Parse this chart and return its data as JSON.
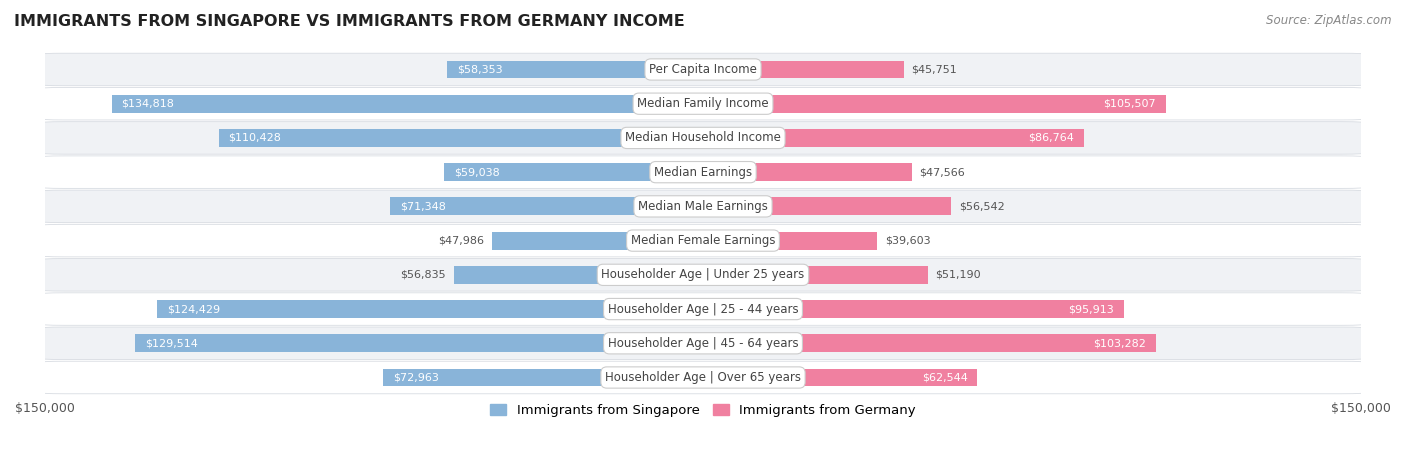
{
  "title": "IMMIGRANTS FROM SINGAPORE VS IMMIGRANTS FROM GERMANY INCOME",
  "source": "Source: ZipAtlas.com",
  "categories": [
    "Per Capita Income",
    "Median Family Income",
    "Median Household Income",
    "Median Earnings",
    "Median Male Earnings",
    "Median Female Earnings",
    "Householder Age | Under 25 years",
    "Householder Age | 25 - 44 years",
    "Householder Age | 45 - 64 years",
    "Householder Age | Over 65 years"
  ],
  "singapore_values": [
    58353,
    134818,
    110428,
    59038,
    71348,
    47986,
    56835,
    124429,
    129514,
    72963
  ],
  "germany_values": [
    45751,
    105507,
    86764,
    47566,
    56542,
    39603,
    51190,
    95913,
    103282,
    62544
  ],
  "max_val": 150000,
  "singapore_color": "#89b4d9",
  "germany_color": "#f080a0",
  "singapore_label": "Immigrants from Singapore",
  "germany_label": "Immigrants from Germany",
  "bar_height": 0.52,
  "background_color": "#ffffff",
  "row_bg_colors": [
    "#f0f2f5",
    "#ffffff",
    "#f0f2f5",
    "#ffffff",
    "#f0f2f5",
    "#ffffff",
    "#f0f2f5",
    "#ffffff",
    "#f0f2f5",
    "#ffffff"
  ],
  "row_border_color": "#d8dce2",
  "label_box_color": "#ffffff",
  "label_box_edge": "#cccccc",
  "value_label_fontsize": 8.0,
  "category_label_fontsize": 8.5,
  "title_fontsize": 11.5,
  "source_fontsize": 8.5
}
